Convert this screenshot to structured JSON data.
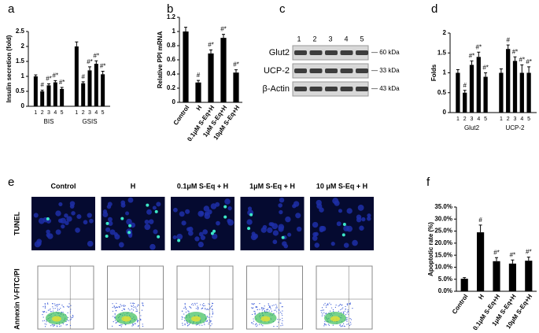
{
  "chart_data": [
    {
      "panel": "a",
      "type": "bar",
      "ylabel": "Insulin secretion (fold)",
      "categories": [
        "BIS",
        "GSIS"
      ],
      "series": [
        {
          "name": "1",
          "color": "#000000",
          "values": [
            1.0,
            2.0
          ],
          "errors": [
            0.05,
            0.15
          ],
          "annotations": [
            null,
            null
          ]
        },
        {
          "name": "2",
          "color": "#000000",
          "values": [
            0.5,
            0.77
          ],
          "errors": [
            0.04,
            0.05
          ],
          "annotations": [
            "#",
            "#"
          ]
        },
        {
          "name": "3",
          "color": "#000000",
          "values": [
            0.7,
            1.2
          ],
          "errors": [
            0.05,
            0.12
          ],
          "annotations": [
            "#*",
            "#*"
          ]
        },
        {
          "name": "4",
          "color": "#000000",
          "values": [
            0.8,
            1.42
          ],
          "errors": [
            0.06,
            0.1
          ],
          "annotations": [
            "#*",
            "#*"
          ]
        },
        {
          "name": "5",
          "color": "#000000",
          "values": [
            0.58,
            1.07
          ],
          "errors": [
            0.05,
            0.1
          ],
          "annotations": [
            "#*",
            "#*"
          ]
        }
      ],
      "ylim": [
        0,
        2.5
      ],
      "yticks": [
        0,
        0.5,
        1,
        1.5,
        2,
        2.5
      ]
    },
    {
      "panel": "b",
      "type": "bar",
      "ylabel": "Relative PPI mRNA",
      "categories": [
        "Control",
        "H",
        "0.1μM S-Eq+H",
        "1μM S-Eq+H",
        "10μM S-Eq+H"
      ],
      "values": [
        1.0,
        0.28,
        0.69,
        0.91,
        0.42
      ],
      "errors": [
        0.06,
        0.03,
        0.05,
        0.05,
        0.04
      ],
      "annotations": [
        null,
        "#",
        "#*",
        "#*",
        "#*"
      ],
      "color": "#000000",
      "ylim": [
        0,
        1.2
      ],
      "yticks": [
        0,
        0.2,
        0.4,
        0.6,
        0.8,
        1,
        1.2
      ]
    },
    {
      "panel": "d",
      "type": "bar",
      "ylabel": "Folds",
      "categories": [
        "Glut2",
        "UCP-2"
      ],
      "series": [
        {
          "name": "1",
          "color": "#000000",
          "values": [
            1.0,
            1.0
          ],
          "errors": [
            0.08,
            0.1
          ],
          "annotations": [
            null,
            null
          ]
        },
        {
          "name": "2",
          "color": "#000000",
          "values": [
            0.5,
            1.6
          ],
          "errors": [
            0.06,
            0.1
          ],
          "annotations": [
            "#",
            "#"
          ]
        },
        {
          "name": "3",
          "color": "#000000",
          "values": [
            1.2,
            1.3
          ],
          "errors": [
            0.1,
            0.1
          ],
          "annotations": [
            "#*",
            "#*"
          ]
        },
        {
          "name": "4",
          "color": "#000000",
          "values": [
            1.4,
            1.0
          ],
          "errors": [
            0.12,
            0.2
          ],
          "annotations": [
            "#*",
            "#*"
          ]
        },
        {
          "name": "5",
          "color": "#000000",
          "values": [
            0.9,
            1.0
          ],
          "errors": [
            0.1,
            0.15
          ],
          "annotations": [
            "#*",
            "#*"
          ]
        }
      ],
      "ylim": [
        0,
        2
      ],
      "yticks": [
        0,
        0.5,
        1,
        1.5,
        2
      ]
    },
    {
      "panel": "f",
      "type": "bar",
      "ylabel": "Apoptotic rate (%)",
      "categories": [
        "Control",
        "H",
        "0.1μM S-Eq+H",
        "1μM S-Eq+H",
        "10μM S-Eq+H"
      ],
      "values": [
        5.2,
        24.5,
        12.5,
        11.5,
        12.7
      ],
      "errors": [
        0.5,
        3.0,
        1.5,
        1.5,
        1.5
      ],
      "annotations": [
        null,
        "#",
        "#*",
        "#*",
        "#*"
      ],
      "color": "#000000",
      "ylim": [
        0,
        35
      ],
      "yticks": [
        {
          "value": 0,
          "label": "0.0%"
        },
        {
          "value": 5,
          "label": "5.0%"
        },
        {
          "value": 10,
          "label": "10.0%"
        },
        {
          "value": 15,
          "label": "15.0%"
        },
        {
          "value": 20,
          "label": "20.0%"
        },
        {
          "value": 25,
          "label": "25.0%"
        },
        {
          "value": 30,
          "label": "30.0%"
        },
        {
          "value": 35,
          "label": "35.0%"
        }
      ]
    }
  ],
  "blot": {
    "panel": "c",
    "lanes": [
      "1",
      "2",
      "3",
      "4",
      "5"
    ],
    "bands": [
      {
        "name": "Glut2",
        "size": "— 60 kDa"
      },
      {
        "name": "UCP-2",
        "size": "— 33 kDa"
      },
      {
        "name": "β-Actin",
        "size": "— 43 kDa"
      }
    ]
  },
  "microscopy": {
    "panel": "e",
    "conditions": [
      "Control",
      "H",
      "0.1μM S-Eq + H",
      "1μM S-Eq + H",
      "10 μM S-Eq + H"
    ],
    "rows": [
      "TUNEL",
      "Annexin V-FITC/PI"
    ]
  }
}
